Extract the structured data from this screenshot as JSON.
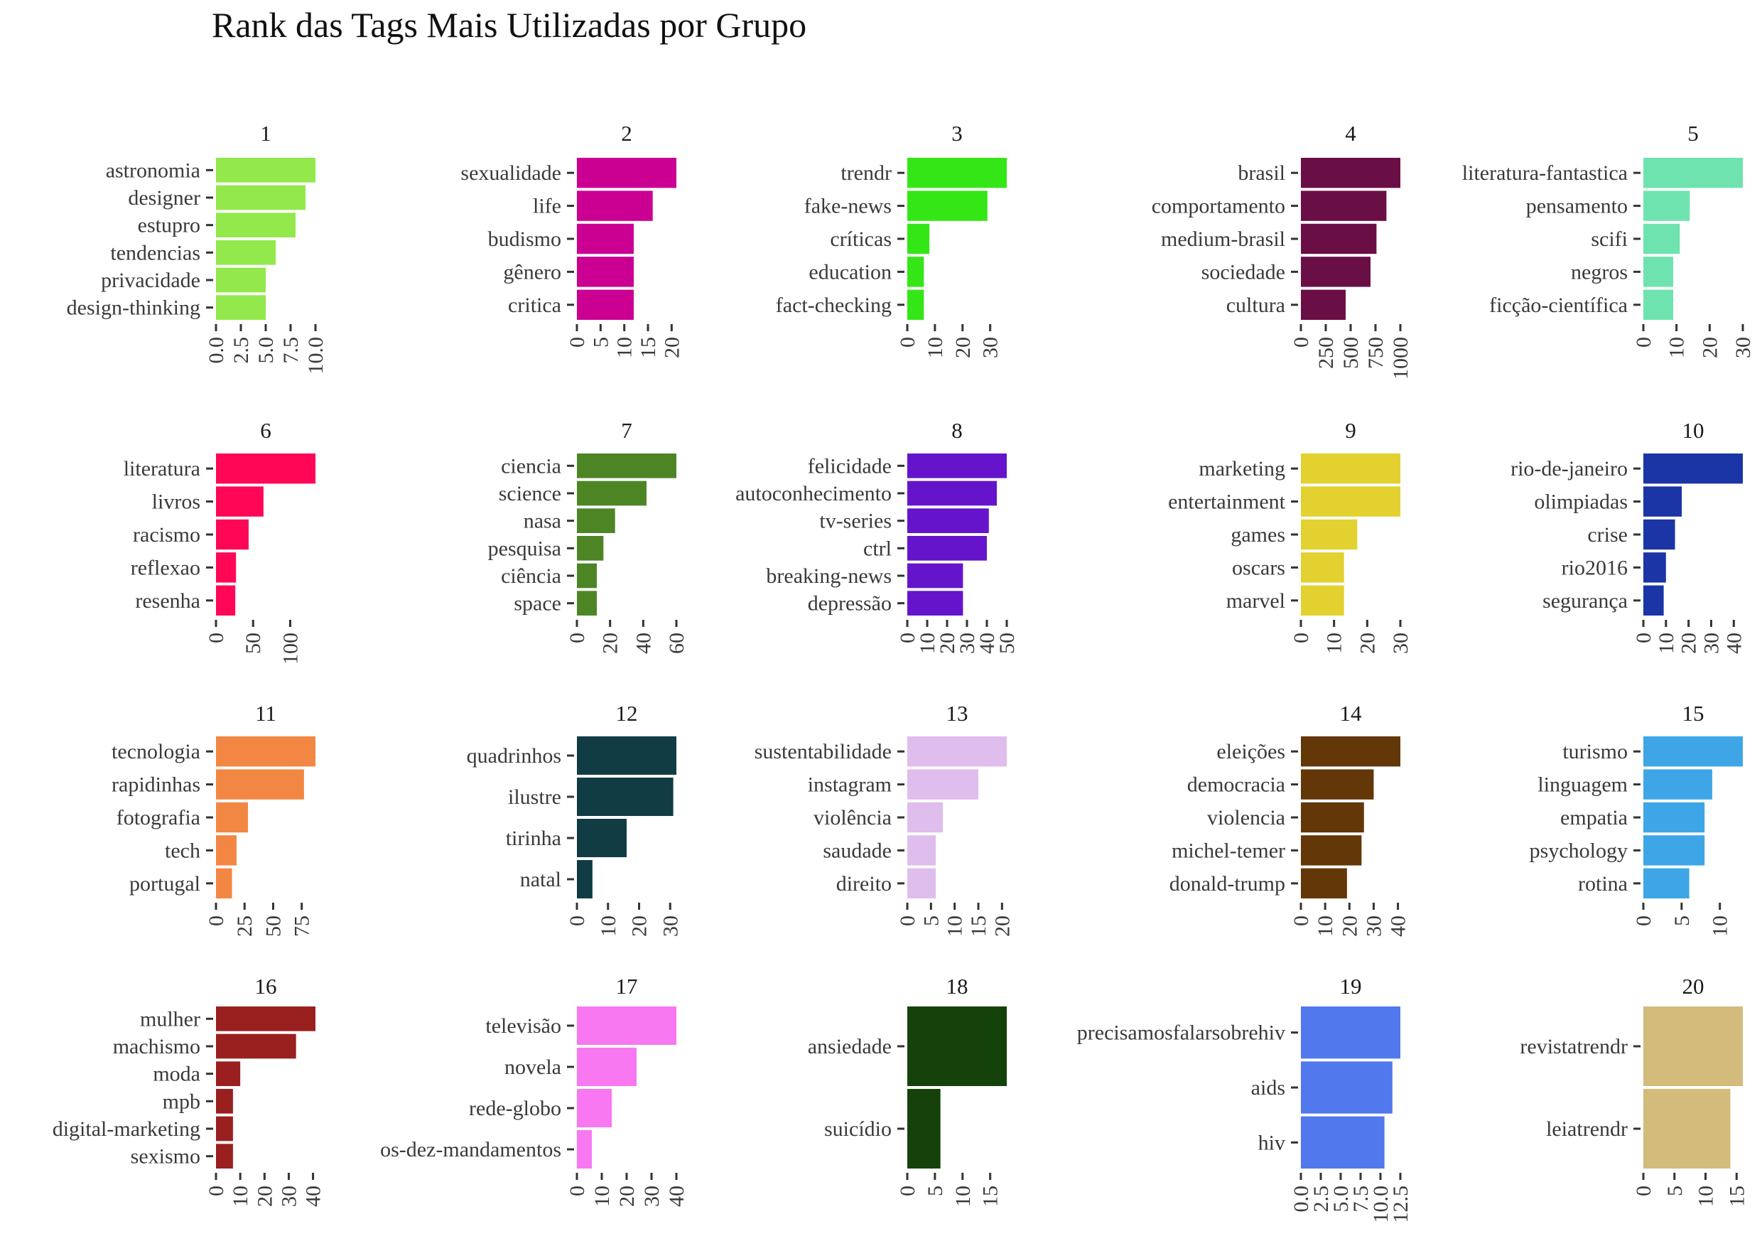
{
  "chart_data": {
    "type": "bar",
    "title": "Rank das Tags Mais Utilizadas por Grupo",
    "orientation": "horizontal",
    "facets": [
      {
        "label": "1",
        "color": "#93E84C",
        "xlim": [
          0,
          10
        ],
        "ticks": [
          "0.0",
          "2.5",
          "5.0",
          "7.5",
          "10.0"
        ],
        "categories": [
          "astronomia",
          "designer",
          "estupro",
          "tendencias",
          "privacidade",
          "design-thinking"
        ],
        "values": [
          10,
          9,
          8,
          6,
          5,
          5
        ]
      },
      {
        "label": "2",
        "color": "#CB0093",
        "xlim": [
          0,
          21
        ],
        "ticks": [
          "0",
          "5",
          "10",
          "15",
          "20"
        ],
        "categories": [
          "sexualidade",
          "life",
          "budismo",
          "gênero",
          "critica"
        ],
        "values": [
          21,
          16,
          12,
          12,
          12
        ]
      },
      {
        "label": "3",
        "color": "#35E617",
        "xlim": [
          0,
          36
        ],
        "ticks": [
          "0",
          "10",
          "20",
          "30"
        ],
        "categories": [
          "trendr",
          "fake-news",
          "críticas",
          "education",
          "fact-checking"
        ],
        "values": [
          36,
          29,
          8,
          6,
          6
        ]
      },
      {
        "label": "4",
        "color": "#6A0F46",
        "xlim": [
          0,
          1000
        ],
        "ticks": [
          "0",
          "250",
          "500",
          "750",
          "1000"
        ],
        "categories": [
          "brasil",
          "comportamento",
          "medium-brasil",
          "sociedade",
          "cultura"
        ],
        "values": [
          1000,
          860,
          760,
          700,
          450
        ]
      },
      {
        "label": "5",
        "color": "#6FE3AF",
        "xlim": [
          0,
          30
        ],
        "ticks": [
          "0",
          "10",
          "20",
          "30"
        ],
        "categories": [
          "literatura-fantastica",
          "pensamento",
          "scifi",
          "negros",
          "ficção-científica"
        ],
        "values": [
          30,
          14,
          11,
          9,
          9
        ]
      },
      {
        "label": "6",
        "color": "#FF0756",
        "xlim": [
          0,
          134
        ],
        "ticks": [
          "0",
          "50",
          "100"
        ],
        "categories": [
          "literatura",
          "livros",
          "racismo",
          "reflexao",
          "resenha"
        ],
        "values": [
          134,
          64,
          44,
          27,
          26
        ]
      },
      {
        "label": "7",
        "color": "#4D8525",
        "xlim": [
          0,
          60
        ],
        "ticks": [
          "0",
          "20",
          "40",
          "60"
        ],
        "categories": [
          "ciencia",
          "science",
          "nasa",
          "pesquisa",
          "ciência",
          "space"
        ],
        "values": [
          60,
          42,
          23,
          16,
          12,
          12
        ]
      },
      {
        "label": "8",
        "color": "#6514CB",
        "xlim": [
          0,
          50
        ],
        "ticks": [
          "0",
          "10",
          "20",
          "30",
          "40",
          "50"
        ],
        "categories": [
          "felicidade",
          "autoconhecimento",
          "tv-series",
          "ctrl",
          "breaking-news",
          "depressão"
        ],
        "values": [
          50,
          45,
          41,
          40,
          28,
          28
        ]
      },
      {
        "label": "9",
        "color": "#E2D12F",
        "xlim": [
          0,
          30
        ],
        "ticks": [
          "0",
          "10",
          "20",
          "30"
        ],
        "categories": [
          "marketing",
          "entertainment",
          "games",
          "oscars",
          "marvel"
        ],
        "values": [
          30,
          30,
          17,
          13,
          13
        ]
      },
      {
        "label": "10",
        "color": "#1B34A6",
        "xlim": [
          0,
          44
        ],
        "ticks": [
          "0",
          "10",
          "20",
          "30",
          "40"
        ],
        "categories": [
          "rio-de-janeiro",
          "olimpiadas",
          "crise",
          "rio2016",
          "segurança"
        ],
        "values": [
          44,
          17,
          14,
          10,
          9
        ]
      },
      {
        "label": "11",
        "color": "#F28744",
        "xlim": [
          0,
          87
        ],
        "ticks": [
          "0",
          "25",
          "50",
          "75"
        ],
        "categories": [
          "tecnologia",
          "rapidinhas",
          "fotografia",
          "tech",
          "portugal"
        ],
        "values": [
          87,
          77,
          28,
          18,
          14
        ]
      },
      {
        "label": "12",
        "color": "#123C44",
        "xlim": [
          0,
          32
        ],
        "ticks": [
          "0",
          "10",
          "20",
          "30"
        ],
        "categories": [
          "quadrinhos",
          "ilustre",
          "tirinha",
          "natal"
        ],
        "values": [
          32,
          31,
          16,
          5
        ]
      },
      {
        "label": "13",
        "color": "#DFBDED",
        "xlim": [
          0,
          21
        ],
        "ticks": [
          "0",
          "5",
          "10",
          "15",
          "20"
        ],
        "categories": [
          "sustentabilidade",
          "instagram",
          "violência",
          "saudade",
          "direito"
        ],
        "values": [
          21,
          15,
          7.5,
          6,
          6
        ]
      },
      {
        "label": "14",
        "color": "#633708",
        "xlim": [
          0,
          41
        ],
        "ticks": [
          "0",
          "10",
          "20",
          "30",
          "40"
        ],
        "categories": [
          "eleições",
          "democracia",
          "violencia",
          "michel-temer",
          "donald-trump"
        ],
        "values": [
          41,
          30,
          26,
          25,
          19
        ]
      },
      {
        "label": "15",
        "color": "#3EA6E6",
        "xlim": [
          0,
          13
        ],
        "ticks": [
          "0",
          "5",
          "10"
        ],
        "categories": [
          "turismo",
          "linguagem",
          "empatia",
          "psychology",
          "rotina"
        ],
        "values": [
          13,
          9,
          8,
          8,
          6
        ]
      },
      {
        "label": "16",
        "color": "#9A2020",
        "xlim": [
          0,
          41
        ],
        "ticks": [
          "0",
          "10",
          "20",
          "30",
          "40"
        ],
        "categories": [
          "mulher",
          "machismo",
          "moda",
          "mpb",
          "digital-marketing",
          "sexismo"
        ],
        "values": [
          41,
          33,
          10,
          7,
          7,
          7
        ]
      },
      {
        "label": "17",
        "color": "#F878F2",
        "xlim": [
          0,
          40
        ],
        "ticks": [
          "0",
          "10",
          "20",
          "30",
          "40"
        ],
        "categories": [
          "televisão",
          "novela",
          "rede-globo",
          "os-dez-mandamentos"
        ],
        "values": [
          40,
          24,
          14,
          6
        ]
      },
      {
        "label": "18",
        "color": "#15420A",
        "xlim": [
          0,
          18
        ],
        "ticks": [
          "0",
          "5",
          "10",
          "15"
        ],
        "categories": [
          "ansiedade",
          "suicídio"
        ],
        "values": [
          18,
          6
        ]
      },
      {
        "label": "19",
        "color": "#5178EC",
        "xlim": [
          0,
          12.5
        ],
        "ticks": [
          "0.0",
          "2.5",
          "5.0",
          "7.5",
          "10.0",
          "12.5"
        ],
        "categories": [
          "precisamosfalarsobrehiv",
          "aids",
          "hiv"
        ],
        "values": [
          12.5,
          11.5,
          10.5
        ]
      },
      {
        "label": "20",
        "color": "#D3BB7B",
        "xlim": [
          0,
          16
        ],
        "ticks": [
          "0",
          "5",
          "10",
          "15"
        ],
        "categories": [
          "revistatrendr",
          "leiatrendr"
        ],
        "values": [
          16,
          14
        ]
      }
    ]
  }
}
